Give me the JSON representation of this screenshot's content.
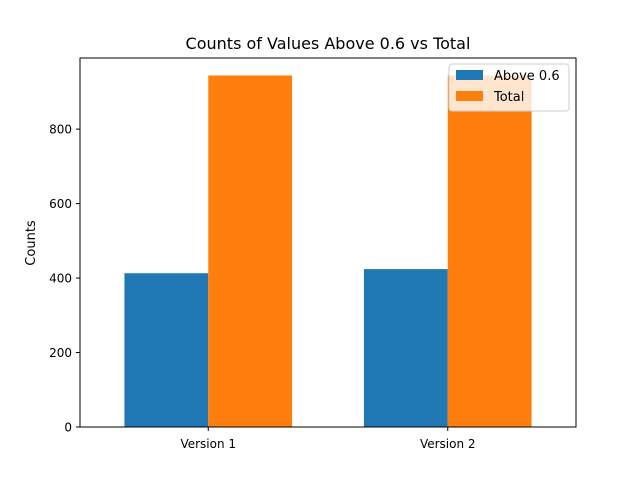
{
  "chart_data": {
    "type": "bar",
    "title": "Counts of Values Above 0.6 vs Total",
    "xlabel": "",
    "ylabel": "Counts",
    "categories": [
      "Version 1",
      "Version 2"
    ],
    "series": [
      {
        "name": "Above 0.6",
        "values": [
          413,
          424
        ],
        "color": "#1f77b4"
      },
      {
        "name": "Total",
        "values": [
          944,
          944
        ],
        "color": "#ff7f0e"
      }
    ],
    "ylim": [
      0,
      991
    ],
    "yticks": [
      0,
      200,
      400,
      600,
      800
    ],
    "grid": false,
    "legend_position": "top-right"
  }
}
